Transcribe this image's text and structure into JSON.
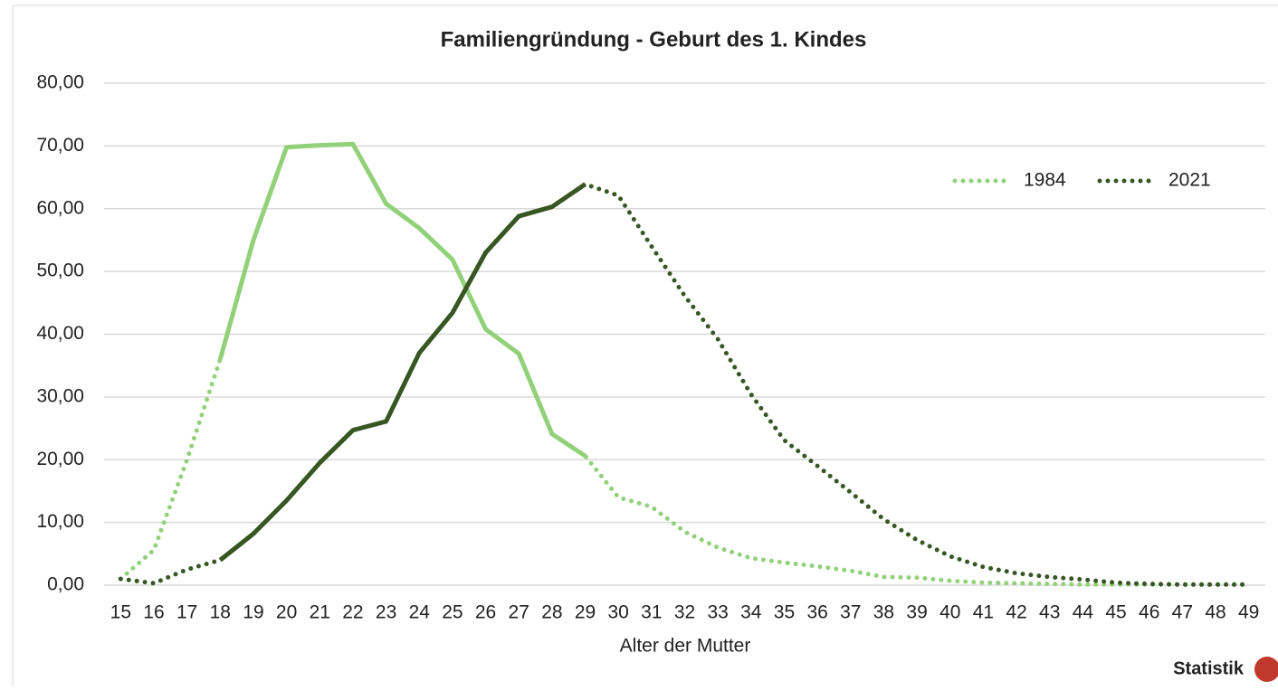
{
  "chart_data": {
    "type": "line",
    "title": "Familiengründung - Geburt des 1. Kindes",
    "x_label": "Alter der Mutter",
    "logo_text": "Statistik",
    "x": [
      15,
      16,
      17,
      18,
      19,
      20,
      21,
      22,
      23,
      24,
      25,
      26,
      27,
      28,
      29,
      30,
      31,
      32,
      33,
      34,
      35,
      36,
      37,
      38,
      39,
      40,
      41,
      42,
      43,
      44,
      45,
      46,
      47,
      48,
      49
    ],
    "xlim": [
      14.5,
      49.5
    ],
    "series": [
      {
        "name": "1984",
        "color": "#92d17a",
        "solid_x": [
          18,
          29
        ],
        "values": [
          1.0,
          5.6,
          20.0,
          36.0,
          55.0,
          69.8,
          70.1,
          70.3,
          60.8,
          56.9,
          51.9,
          40.8,
          36.9,
          24.1,
          20.6,
          14.0,
          12.5,
          8.5,
          6.0,
          4.3,
          3.6,
          3.0,
          2.3,
          1.3,
          1.2,
          0.7,
          0.4,
          0.3,
          0.2,
          0.1,
          0.1,
          0.1,
          0.1,
          0.1,
          0.1
        ]
      },
      {
        "name": "2021",
        "color": "#375623",
        "solid_x": [
          18,
          29
        ],
        "values": [
          1.0,
          0.3,
          2.5,
          4.0,
          8.2,
          13.5,
          19.5,
          24.7,
          26.1,
          37.0,
          43.4,
          53.0,
          58.8,
          60.3,
          63.9,
          62.1,
          54.0,
          46.1,
          39.2,
          30.4,
          23.1,
          19.0,
          14.8,
          10.5,
          7.2,
          4.6,
          2.9,
          1.9,
          1.3,
          0.9,
          0.4,
          0.2,
          0.1,
          0.1,
          0.1
        ]
      }
    ],
    "ylim": [
      0,
      80
    ],
    "yticks": [
      {
        "value": 0,
        "label": "0,00"
      },
      {
        "value": 10,
        "label": "10,00"
      },
      {
        "value": 20,
        "label": "20,00"
      },
      {
        "value": 30,
        "label": "30,00"
      },
      {
        "value": 40,
        "label": "40,00"
      },
      {
        "value": 50,
        "label": "50,00"
      },
      {
        "value": 60,
        "label": "60,00"
      },
      {
        "value": 70,
        "label": "70,00"
      },
      {
        "value": 80,
        "label": "80,00"
      }
    ],
    "grid": true,
    "legend": "upper-right"
  }
}
